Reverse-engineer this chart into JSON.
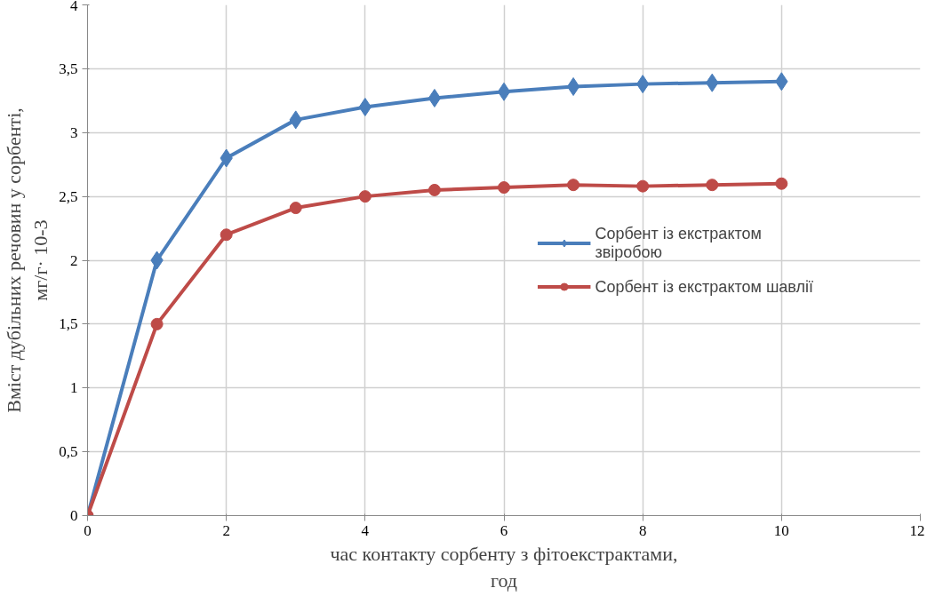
{
  "chart_data": {
    "type": "line",
    "xlabel": "час контакту сорбенту з фітоекстрактами,\nгод",
    "ylabel": "Вміст дубільних речовин у сорбенті,\nмг/г· 10-3",
    "x": [
      0,
      1,
      2,
      3,
      4,
      5,
      6,
      7,
      8,
      9,
      10
    ],
    "series": [
      {
        "name": "Сорбент із екстрактом\nзвіробою",
        "color": "#4a7ebb",
        "marker": "diamond",
        "values": [
          0,
          2.0,
          2.8,
          3.1,
          3.2,
          3.27,
          3.32,
          3.36,
          3.38,
          3.39,
          3.4
        ]
      },
      {
        "name": "Сорбент із екстрактом шавлії",
        "color": "#be4b48",
        "marker": "circle",
        "values": [
          0,
          1.5,
          2.2,
          2.41,
          2.5,
          2.55,
          2.57,
          2.59,
          2.58,
          2.59,
          2.6
        ]
      }
    ],
    "xlim": [
      0,
      12
    ],
    "xticks": [
      0,
      2,
      4,
      6,
      8,
      10,
      12
    ],
    "ylim": [
      0,
      4
    ],
    "yticks": [
      0,
      {
        "value": 0.5,
        "label": "0,5"
      },
      1,
      {
        "value": 1.5,
        "label": "1,5"
      },
      2,
      {
        "value": 2.5,
        "label": "2,5"
      },
      3,
      {
        "value": 3.5,
        "label": "3,5"
      },
      4
    ],
    "grid": true,
    "legend": "right",
    "line_style": "solid"
  }
}
